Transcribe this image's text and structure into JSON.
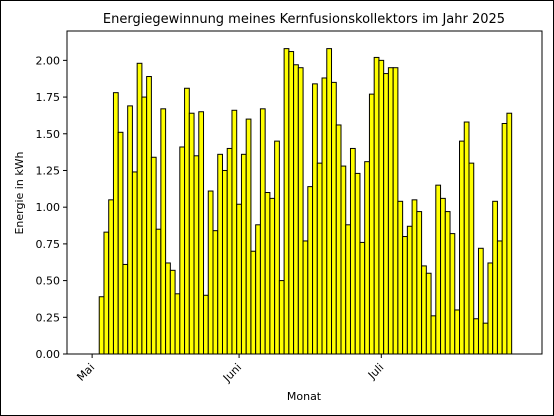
{
  "chart_data": {
    "type": "bar",
    "title": "Energiegewinnung meines Kernfusionskollektors im Jahr 2025",
    "xlabel": "Monat",
    "ylabel": "Energie in kWh",
    "color": "#ffff00",
    "edgecolor": "#000000",
    "x": [
      2,
      3,
      4,
      5,
      6,
      7,
      8,
      9,
      10,
      11,
      12,
      13,
      14,
      15,
      16,
      17,
      18,
      19,
      20,
      21,
      22,
      23,
      24,
      25,
      26,
      27,
      28,
      29,
      30,
      31,
      32,
      33,
      34,
      35,
      36,
      37,
      38,
      39,
      40,
      41,
      42,
      43,
      44,
      45,
      46,
      47,
      48,
      49,
      50,
      51,
      52,
      53,
      54,
      55,
      56,
      57,
      58,
      59,
      60,
      61,
      62,
      63,
      64,
      65,
      66,
      67,
      68,
      69,
      70,
      71,
      72,
      73,
      74,
      75,
      76,
      77,
      78,
      79,
      80,
      81,
      82,
      83,
      84,
      85,
      86,
      87,
      88
    ],
    "values": [
      0.39,
      0.83,
      1.05,
      1.78,
      1.51,
      0.61,
      1.69,
      1.24,
      1.98,
      1.75,
      1.89,
      1.34,
      0.85,
      1.67,
      0.62,
      0.57,
      0.41,
      1.41,
      1.81,
      1.64,
      1.35,
      1.65,
      0.4,
      1.11,
      0.84,
      1.36,
      1.25,
      1.4,
      1.66,
      1.02,
      1.36,
      1.6,
      0.7,
      0.88,
      1.67,
      1.1,
      1.06,
      1.45,
      0.5,
      2.08,
      2.06,
      1.97,
      1.95,
      0.77,
      1.14,
      1.84,
      1.3,
      1.88,
      2.08,
      1.85,
      1.56,
      1.28,
      0.88,
      1.4,
      1.23,
      0.76,
      1.31,
      1.77,
      2.02,
      2.0,
      1.91,
      1.95,
      1.95,
      1.04,
      0.8,
      0.87,
      1.05,
      0.97,
      0.6,
      0.55,
      0.26,
      1.15,
      1.06,
      0.97,
      0.82,
      0.3,
      1.45,
      1.58,
      1.3,
      0.24,
      0.72,
      0.21,
      0.62,
      1.04,
      0.77,
      1.57,
      1.64
    ],
    "xlim": [
      -5.3,
      94.9
    ],
    "xticks": [
      {
        "value": 0,
        "label": "Mai"
      },
      {
        "value": 31,
        "label": "Juni"
      },
      {
        "value": 61,
        "label": "Juli"
      }
    ],
    "ylim": [
      0,
      2.2
    ],
    "yticks": [
      {
        "value": 0,
        "label": "0.00"
      },
      {
        "value": 0.25,
        "label": "0.25"
      },
      {
        "value": 0.5,
        "label": "0.50"
      },
      {
        "value": 0.75,
        "label": "0.75"
      },
      {
        "value": 1,
        "label": "1.00"
      },
      {
        "value": 1.25,
        "label": "1.25"
      },
      {
        "value": 1.5,
        "label": "1.50"
      },
      {
        "value": 1.75,
        "label": "1.75"
      },
      {
        "value": 2,
        "label": "2.00"
      }
    ]
  }
}
